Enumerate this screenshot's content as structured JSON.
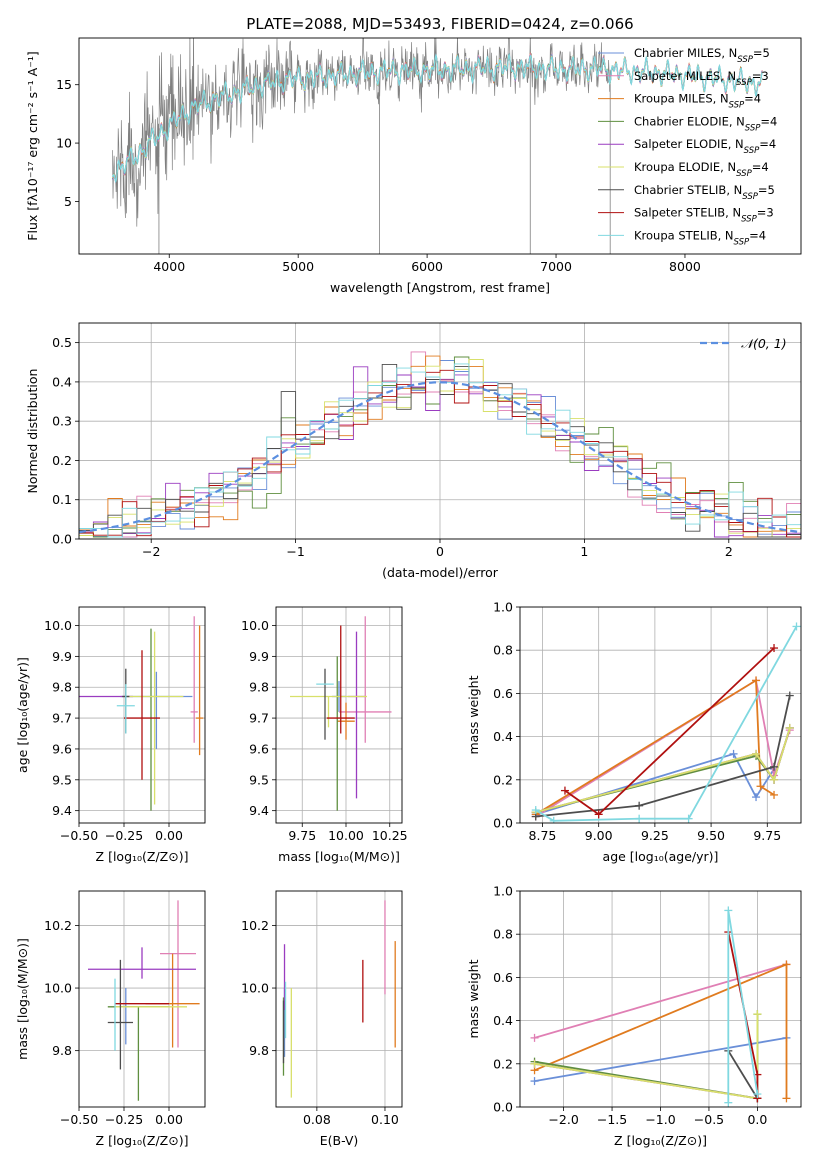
{
  "figure_title": "PLATE=2088, MJD=53493, FIBERID=0424, z=0.066",
  "colors": {
    "chabrier_miles": "#6a8fd8",
    "salpeter_miles": "#e07fb4",
    "kroupa_miles": "#e07b1f",
    "chabrier_elodie": "#5f8f3f",
    "salpeter_elodie": "#9a3cc0",
    "kroupa_elodie": "#d8e06a",
    "chabrier_stelib": "#4d4d4d",
    "salpeter_stelib": "#b01010",
    "kroupa_stelib": "#80d8e0",
    "data": "#808080",
    "normal": "#5b8fe0"
  },
  "legend_spectrum": [
    {
      "key": "chabrier_miles",
      "label": "Chabrier MILES, N",
      "sub": "SSP",
      "suffix": "=5"
    },
    {
      "key": "salpeter_miles",
      "label": "Salpeter MILES, N",
      "sub": "SSP",
      "suffix": "=3"
    },
    {
      "key": "kroupa_miles",
      "label": "Kroupa MILES, N",
      "sub": "SSP",
      "suffix": "=4"
    },
    {
      "key": "chabrier_elodie",
      "label": "Chabrier ELODIE, N",
      "sub": "SSP",
      "suffix": "=4"
    },
    {
      "key": "salpeter_elodie",
      "label": "Salpeter ELODIE, N",
      "sub": "SSP",
      "suffix": "=4"
    },
    {
      "key": "kroupa_elodie",
      "label": "Kroupa ELODIE, N",
      "sub": "SSP",
      "suffix": "=4"
    },
    {
      "key": "chabrier_stelib",
      "label": "Chabrier STELIB, N",
      "sub": "SSP",
      "suffix": "=5"
    },
    {
      "key": "salpeter_stelib",
      "label": "Salpeter STELIB, N",
      "sub": "SSP",
      "suffix": "=3"
    },
    {
      "key": "kroupa_stelib",
      "label": "Kroupa STELIB, N",
      "sub": "SSP",
      "suffix": "=4"
    }
  ],
  "legend_hist": {
    "label": "𝒩(0, 1)"
  },
  "chart_data": [
    {
      "id": "spectrum",
      "type": "line",
      "xlabel": "wavelength [Angstrom, rest frame]",
      "ylabel": "Flux [fλ10⁻¹⁷ erg cm⁻² s⁻¹ A⁻¹]",
      "xlim": [
        3300,
        8900
      ],
      "ylim": [
        0.5,
        19
      ],
      "xticks": [
        4000,
        5000,
        6000,
        7000,
        8000
      ],
      "yticks": [
        5,
        10,
        15
      ],
      "grid": false,
      "legend": "right",
      "continuum_wavelength": [
        3560,
        3700,
        3850,
        4000,
        4150,
        4300,
        4500,
        4700,
        4900,
        5100,
        5300,
        5500,
        5700,
        5900,
        6100,
        6300,
        6500,
        6700,
        6900,
        7100,
        7300,
        7500,
        7700,
        7900,
        8100,
        8300,
        8500,
        8600
      ],
      "continuum_flux": [
        7.5,
        8.5,
        10.0,
        11.5,
        12.8,
        13.6,
        14.3,
        15.0,
        15.4,
        15.6,
        15.8,
        16.0,
        16.2,
        16.2,
        16.3,
        16.4,
        16.4,
        16.5,
        16.4,
        16.3,
        16.4,
        16.2,
        16.1,
        15.9,
        15.7,
        15.4,
        15.2,
        15.0
      ],
      "data_range": [
        3560,
        7420
      ],
      "model_range": [
        3560,
        8600
      ]
    },
    {
      "id": "residual_hist",
      "type": "bar",
      "xlabel": "(data-model)/error",
      "ylabel": "Normed distribution",
      "xlim": [
        -2.5,
        2.5
      ],
      "ylim": [
        0,
        0.55
      ],
      "xticks": [
        -2,
        -1,
        0,
        1,
        2
      ],
      "yticks": [
        0.0,
        0.1,
        0.2,
        0.3,
        0.4,
        0.5
      ],
      "grid": true,
      "legend": "top-right",
      "bin_width": 0.1
    },
    {
      "id": "age_vs_z",
      "type": "scatter",
      "xlabel": "Z [log₁₀(Z/Z⊙)]",
      "ylabel": "age  [log₁₀(age/yr)]",
      "xlim": [
        -0.5,
        0.2
      ],
      "ylim": [
        9.36,
        10.06
      ],
      "xticks": [
        -0.5,
        -0.25,
        0.0
      ],
      "yticks": [
        9.4,
        9.5,
        9.6,
        9.7,
        9.8,
        9.9,
        10.0
      ],
      "grid": true,
      "points": [
        {
          "key": "chabrier_miles",
          "x": -0.07,
          "xerr": 0.2,
          "y": 9.77,
          "yerr": [
            0.17,
            0.08
          ]
        },
        {
          "key": "salpeter_miles",
          "x": 0.14,
          "xerr": 0.02,
          "y": 9.72,
          "yerr": [
            0.1,
            0.31
          ]
        },
        {
          "key": "kroupa_miles",
          "x": 0.17,
          "xerr": 0.02,
          "y": 9.7,
          "yerr": [
            0.12,
            0.3
          ]
        },
        {
          "key": "chabrier_elodie",
          "x": -0.1,
          "xerr": 0.0,
          "y": 9.7,
          "yerr": [
            0.3,
            0.29
          ]
        },
        {
          "key": "salpeter_elodie",
          "x": -0.35,
          "xerr": 0.15,
          "y": 9.77,
          "yerr": [
            0.0,
            0.0
          ]
        },
        {
          "key": "kroupa_elodie",
          "x": -0.08,
          "xerr": 0.16,
          "y": 9.77,
          "yerr": [
            0.35,
            0.21
          ]
        },
        {
          "key": "chabrier_stelib",
          "x": -0.24,
          "xerr": 0.02,
          "y": 9.77,
          "yerr": [
            0.12,
            0.09
          ]
        },
        {
          "key": "salpeter_stelib",
          "x": -0.15,
          "xerr": 0.1,
          "y": 9.7,
          "yerr": [
            0.2,
            0.22
          ]
        },
        {
          "key": "kroupa_stelib",
          "x": -0.24,
          "xerr": 0.05,
          "y": 9.74,
          "yerr": [
            0.09,
            0.07
          ]
        }
      ]
    },
    {
      "id": "age_vs_mass",
      "type": "scatter",
      "xlabel": "mass [log₁₀(M/M⊙)]",
      "ylabel": "",
      "xlim": [
        9.6,
        10.32
      ],
      "ylim": [
        9.36,
        10.06
      ],
      "xticks": [
        9.75,
        10.0,
        10.25
      ],
      "yticks": [
        9.4,
        9.5,
        9.6,
        9.7,
        9.8,
        9.9,
        10.0
      ],
      "grid": true,
      "points": [
        {
          "key": "chabrier_miles",
          "x": 9.96,
          "xerr": 0.04,
          "y": 9.77,
          "yerr": [
            0.05,
            0.05
          ]
        },
        {
          "key": "salpeter_miles",
          "x": 10.11,
          "xerr": 0.15,
          "y": 9.72,
          "yerr": [
            0.1,
            0.31
          ]
        },
        {
          "key": "kroupa_miles",
          "x": 10.0,
          "xerr": 0.05,
          "y": 9.69,
          "yerr": [
            0.06,
            0.06
          ]
        },
        {
          "key": "chabrier_elodie",
          "x": 9.95,
          "xerr": 0.0,
          "y": 9.7,
          "yerr": [
            0.3,
            0.2
          ]
        },
        {
          "key": "salpeter_elodie",
          "x": 10.06,
          "xerr": 0.05,
          "y": 9.77,
          "yerr": [
            0.33,
            0.21
          ]
        },
        {
          "key": "kroupa_elodie",
          "x": 9.9,
          "xerr": 0.22,
          "y": 9.77,
          "yerr": [
            0.1,
            0.0
          ]
        },
        {
          "key": "chabrier_stelib",
          "x": 9.88,
          "xerr": 0.0,
          "y": 9.77,
          "yerr": [
            0.14,
            0.09
          ]
        },
        {
          "key": "salpeter_stelib",
          "x": 9.97,
          "xerr": 0.08,
          "y": 9.7,
          "yerr": [
            0.05,
            0.3
          ]
        },
        {
          "key": "kroupa_stelib",
          "x": 9.88,
          "xerr": 0.05,
          "y": 9.81,
          "yerr": [
            0.0,
            0.0
          ]
        }
      ]
    },
    {
      "id": "weight_vs_age",
      "type": "line",
      "xlabel": "age  [log₁₀(age/yr)]",
      "ylabel": "mass weight",
      "xlim": [
        8.65,
        9.9
      ],
      "ylim": [
        0.0,
        1.0
      ],
      "xticks": [
        8.75,
        9.0,
        9.25,
        9.5,
        9.75
      ],
      "yticks": [
        0.0,
        0.2,
        0.4,
        0.6,
        0.8,
        1.0
      ],
      "grid": true,
      "series": [
        {
          "key": "chabrier_miles",
          "x": [
            8.72,
            9.6,
            9.7,
            9.78
          ],
          "y": [
            0.04,
            0.32,
            0.12,
            0.25
          ]
        },
        {
          "key": "salpeter_miles",
          "x": [
            8.72,
            9.7,
            9.78,
            9.85
          ],
          "y": [
            0.03,
            0.66,
            0.22,
            0.43
          ]
        },
        {
          "key": "kroupa_miles",
          "x": [
            8.72,
            9.7,
            9.72,
            9.78
          ],
          "y": [
            0.04,
            0.66,
            0.17,
            0.13
          ]
        },
        {
          "key": "chabrier_elodie",
          "x": [
            8.72,
            9.7,
            9.78,
            9.85
          ],
          "y": [
            0.05,
            0.31,
            0.2,
            0.44
          ]
        },
        {
          "key": "salpeter_elodie",
          "x": [
            8.72,
            9.7,
            9.78,
            9.85
          ],
          "y": [
            0.05,
            0.32,
            0.2,
            0.44
          ]
        },
        {
          "key": "kroupa_elodie",
          "x": [
            8.72,
            9.7,
            9.78,
            9.85
          ],
          "y": [
            0.05,
            0.32,
            0.2,
            0.44
          ]
        },
        {
          "key": "chabrier_stelib",
          "x": [
            8.72,
            9.18,
            9.78,
            9.85
          ],
          "y": [
            0.03,
            0.08,
            0.26,
            0.59
          ]
        },
        {
          "key": "salpeter_stelib",
          "x": [
            8.85,
            9.0,
            9.78
          ],
          "y": [
            0.15,
            0.04,
            0.81
          ]
        },
        {
          "key": "kroupa_stelib",
          "x": [
            8.72,
            8.8,
            9.18,
            9.4,
            9.88
          ],
          "y": [
            0.06,
            0.01,
            0.02,
            0.02,
            0.91
          ]
        }
      ]
    },
    {
      "id": "mass_vs_z",
      "type": "scatter",
      "xlabel": "Z [log₁₀(Z/Z⊙)]",
      "ylabel": "mass [log₁₀(M/M⊙)]",
      "xlim": [
        -0.5,
        0.2
      ],
      "ylim": [
        9.62,
        10.31
      ],
      "xticks": [
        -0.5,
        -0.25,
        0.0
      ],
      "yticks": [
        9.8,
        10.0,
        10.2
      ],
      "grid": true,
      "points": [
        {
          "key": "chabrier_miles",
          "x": -0.24,
          "xerr": 0.02,
          "y": 9.94,
          "yerr": [
            0.12,
            0.06
          ]
        },
        {
          "key": "salpeter_miles",
          "x": 0.05,
          "xerr": 0.1,
          "y": 10.11,
          "yerr": [
            0.3,
            0.17
          ]
        },
        {
          "key": "kroupa_miles",
          "x": 0.02,
          "xerr": 0.15,
          "y": 9.95,
          "yerr": [
            0.14,
            0.16
          ]
        },
        {
          "key": "chabrier_elodie",
          "x": -0.17,
          "xerr": 0.17,
          "y": 9.94,
          "yerr": [
            0.3,
            0.0
          ]
        },
        {
          "key": "salpeter_elodie",
          "x": -0.15,
          "xerr": 0.3,
          "y": 10.06,
          "yerr": [
            0.03,
            0.07
          ]
        },
        {
          "key": "kroupa_elodie",
          "x": -0.1,
          "xerr": 0.2,
          "y": 9.94,
          "yerr": [
            0.0,
            0.0
          ]
        },
        {
          "key": "chabrier_stelib",
          "x": -0.27,
          "xerr": 0.07,
          "y": 9.89,
          "yerr": [
            0.15,
            0.2
          ]
        },
        {
          "key": "salpeter_stelib",
          "x": -0.15,
          "xerr": 0.15,
          "y": 9.95,
          "yerr": [
            0.0,
            0.0
          ]
        },
        {
          "key": "kroupa_stelib",
          "x": -0.3,
          "xerr": 0.0,
          "y": 9.94,
          "yerr": [
            0.14,
            0.09
          ]
        }
      ]
    },
    {
      "id": "mass_vs_ebv",
      "type": "scatter",
      "xlabel": "E(B-V)",
      "ylabel": "",
      "xlim": [
        0.068,
        0.105
      ],
      "ylim": [
        9.62,
        10.31
      ],
      "xticks": [
        0.08,
        0.1
      ],
      "yticks": [
        9.8,
        10.0,
        10.2
      ],
      "grid": true,
      "points": [
        {
          "key": "chabrier_miles",
          "x": 0.0705,
          "xerr": 0,
          "y": 9.88,
          "yerr": [
            0.1,
            0.12
          ]
        },
        {
          "key": "salpeter_miles",
          "x": 0.1,
          "xerr": 0,
          "y": 10.13,
          "yerr": [
            0.15,
            0.15
          ]
        },
        {
          "key": "kroupa_miles",
          "x": 0.103,
          "xerr": 0,
          "y": 9.98,
          "yerr": [
            0.17,
            0.17
          ]
        },
        {
          "key": "chabrier_elodie",
          "x": 0.0702,
          "xerr": 0,
          "y": 9.87,
          "yerr": [
            0.15,
            0.1
          ]
        },
        {
          "key": "salpeter_elodie",
          "x": 0.0705,
          "xerr": 0,
          "y": 10.03,
          "yerr": [
            0.1,
            0.11
          ]
        },
        {
          "key": "kroupa_elodie",
          "x": 0.0725,
          "xerr": 0,
          "y": 9.84,
          "yerr": [
            0.19,
            0.16
          ]
        },
        {
          "key": "chabrier_stelib",
          "x": 0.0702,
          "xerr": 0,
          "y": 9.86,
          "yerr": [
            0.1,
            0.1
          ]
        },
        {
          "key": "salpeter_stelib",
          "x": 0.0935,
          "xerr": 0,
          "y": 9.99,
          "yerr": [
            0.1,
            0.1
          ]
        },
        {
          "key": "kroupa_stelib",
          "x": 0.0708,
          "xerr": 0,
          "y": 9.94,
          "yerr": [
            0.1,
            0.08
          ]
        }
      ]
    },
    {
      "id": "weight_vs_z",
      "type": "line",
      "xlabel": "Z [log₁₀(Z/Z⊙)]",
      "ylabel": "mass weight",
      "xlim": [
        -2.45,
        0.45
      ],
      "ylim": [
        0.0,
        1.0
      ],
      "xticks": [
        -2.0,
        -1.5,
        -1.0,
        -0.5,
        0.0
      ],
      "yticks": [
        0.0,
        0.2,
        0.4,
        0.6,
        0.8,
        1.0
      ],
      "grid": true,
      "series": [
        {
          "key": "chabrier_miles",
          "x": [
            -2.3,
            0.3
          ],
          "y": [
            0.12,
            0.32
          ]
        },
        {
          "key": "salpeter_miles",
          "x": [
            -2.3,
            0.3
          ],
          "y": [
            0.32,
            0.66
          ]
        },
        {
          "key": "kroupa_miles",
          "x": [
            -2.3,
            0.3,
            0.3
          ],
          "y": [
            0.17,
            0.66,
            0.04
          ]
        },
        {
          "key": "chabrier_elodie",
          "x": [
            -2.3,
            0.0,
            0.0
          ],
          "y": [
            0.21,
            0.04,
            0.43
          ]
        },
        {
          "key": "salpeter_elodie",
          "x": [
            -2.3,
            0.0
          ],
          "y": [
            0.2,
            0.04
          ]
        },
        {
          "key": "kroupa_elodie",
          "x": [
            -2.3,
            0.0,
            0.0
          ],
          "y": [
            0.2,
            0.04,
            0.43
          ]
        },
        {
          "key": "chabrier_stelib",
          "x": [
            -0.3,
            0.0
          ],
          "y": [
            0.26,
            0.04
          ]
        },
        {
          "key": "salpeter_stelib",
          "x": [
            -0.3,
            0.0,
            0.0
          ],
          "y": [
            0.81,
            0.15,
            0.04
          ]
        },
        {
          "key": "kroupa_stelib",
          "x": [
            -0.3,
            -0.3,
            0.0
          ],
          "y": [
            0.02,
            0.91,
            0.06
          ]
        }
      ]
    }
  ]
}
